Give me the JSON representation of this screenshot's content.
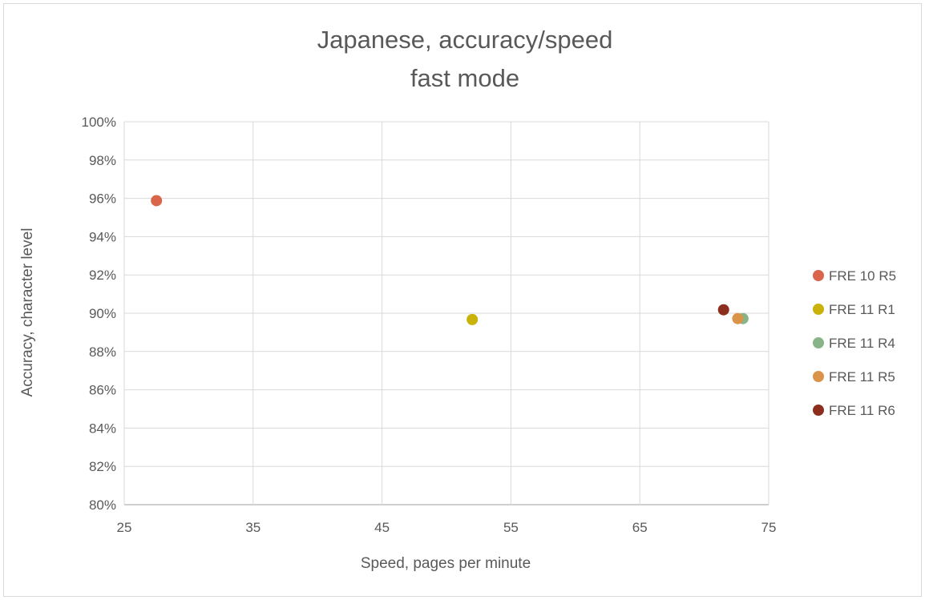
{
  "chart_data": {
    "type": "scatter",
    "title_lines": [
      "Japanese, accuracy/speed",
      "fast mode"
    ],
    "xlabel": "Speed, pages per minute",
    "ylabel": "Accuracy, character level",
    "xlim": [
      25,
      75
    ],
    "ylim": [
      0.8,
      1.0
    ],
    "x_ticks": [
      25,
      35,
      45,
      55,
      65,
      75
    ],
    "x_tick_labels": [
      "25",
      "35",
      "45",
      "55",
      "65",
      "75"
    ],
    "y_ticks": [
      0.8,
      0.82,
      0.84,
      0.86,
      0.88,
      0.9,
      0.92,
      0.94,
      0.96,
      0.98,
      1.0
    ],
    "y_tick_labels": [
      "80%",
      "82%",
      "84%",
      "86%",
      "88%",
      "90%",
      "92%",
      "94%",
      "96%",
      "98%",
      "100%"
    ],
    "grid": true,
    "legend_position": "right",
    "series": [
      {
        "name": "FRE 10 R5",
        "color": "#d9654a",
        "points": [
          {
            "x": 27.5,
            "y": 0.9588
          }
        ]
      },
      {
        "name": "FRE 11 R1",
        "color": "#c9b20a",
        "points": [
          {
            "x": 52.0,
            "y": 0.8967
          }
        ]
      },
      {
        "name": "FRE 11 R4",
        "color": "#88b488",
        "points": [
          {
            "x": 73.0,
            "y": 0.8972
          }
        ]
      },
      {
        "name": "FRE 11 R5",
        "color": "#d9944a",
        "points": [
          {
            "x": 72.6,
            "y": 0.8972
          }
        ]
      },
      {
        "name": "FRE 11 R6",
        "color": "#8b2e1e",
        "points": [
          {
            "x": 71.5,
            "y": 0.9018
          }
        ]
      }
    ]
  }
}
